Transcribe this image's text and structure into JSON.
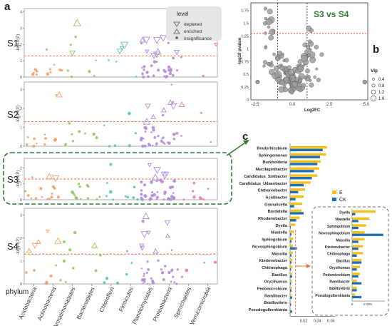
{
  "panels": {
    "a": "a",
    "b": "b",
    "c": "c"
  },
  "colors": {
    "Acidobacteria": "#F4A06A",
    "Actinobacteria": "#F4A06A",
    "Armatimonadetes": "#93C760",
    "Bacteroidetes": "#93C760",
    "Chloroflexi": "#5DC6A6",
    "Firmicutes": "#5DC6A6",
    "Planctomycetes": "#B08AD8",
    "Proteobacteria": "#B08AD8",
    "Spirochaetes": "#F07AA6",
    "Verrucomicrobia": "#F07AA6",
    "threshold": "#F26B38",
    "E": "#F6C01C",
    "CK": "#1F6FB2",
    "highlight": "#2E7D32",
    "volcano_point": "#9E9E9E"
  },
  "chart_data": [
    {
      "type": "scatter",
      "panel": "a",
      "subplots": [
        "S1",
        "S2",
        "S3",
        "S4"
      ],
      "ylabel": "-log10(P)",
      "xlabel": "phylum",
      "categories": [
        "Acidobacteria",
        "Actinobacteria",
        "Armatimonadetes",
        "Bacteroidetes",
        "Chloroflexi",
        "Firmicutes",
        "Planctomycetes",
        "Proteobacteria",
        "Spirochaetes",
        "Verrucomicrobia"
      ],
      "threshold": 1.3,
      "legend": {
        "title": "level",
        "entries": [
          "depleted",
          "enriched",
          "insignificance"
        ],
        "placement": "top-right"
      },
      "yticks": {
        "S1": [
          0,
          1,
          2,
          3,
          4
        ],
        "S2": [
          0,
          1,
          2,
          3
        ],
        "S3": [
          0,
          1,
          2
        ],
        "S4": [
          0,
          1,
          2,
          3
        ]
      },
      "ylim": {
        "S1": [
          0,
          4.2
        ],
        "S2": [
          0,
          3.4
        ],
        "S3": [
          0,
          2.6
        ],
        "S4": [
          0,
          3.3
        ]
      }
    },
    {
      "type": "scatter",
      "panel": "b",
      "title": "S3 vs S4",
      "xlabel": "Log2FC",
      "ylabel": "-log10 pvalue",
      "xticks": [
        -2.5,
        0,
        2.5,
        5
      ],
      "xtick_labels": [
        "-2.5",
        "0.0",
        "2.5",
        "5.0"
      ],
      "yticks": [
        0,
        0.25,
        0.5,
        0.75,
        1,
        1.25,
        1.5,
        1.75
      ],
      "xlim": [
        -2.8,
        5.1
      ],
      "ylim": [
        0,
        1.9
      ],
      "fc_lines": [
        -1,
        1
      ],
      "p_line": 1.3,
      "legend": {
        "title": "Vip",
        "entries": [
          "0.4",
          "0.8",
          "1.2",
          "1.6"
        ],
        "placement": "right"
      }
    },
    {
      "type": "bar",
      "panel": "c",
      "orientation": "horizontal",
      "categories": [
        "Bradyrhizobium",
        "Sphingomonas",
        "Burkholderia",
        "Mucilaginibacter",
        "Candidatus_Solibacter",
        "Candidatus_Udaeobacter",
        "Chthoniobacter",
        "Acidibacter",
        "Granulicella",
        "Bordetella",
        "Rhodanobacter",
        "Dyella",
        "Niastella",
        "Sphingobium",
        "Novosphingobium",
        "Massilia",
        "Ktedonobacter",
        "Chitinophaga",
        "Bacillus",
        "Oryzihumus",
        "Pedomicrobium",
        "Ramlibacter",
        "Bdellovibrio",
        "Pseudogulbenkiania"
      ],
      "series": [
        {
          "name": "E",
          "values": [
            0.054,
            0.053,
            0.045,
            0.043,
            0.04,
            0.03,
            0.022,
            0.02,
            0.018,
            0.017,
            0.014,
            0.0075,
            0.0055,
            0.0045,
            0.004,
            0.004,
            0.0035,
            0.0035,
            0.003,
            0.0025,
            0.0025,
            0.0015,
            0.0015,
            0.001
          ]
        },
        {
          "name": "CK",
          "values": [
            0.048,
            0.044,
            0.04,
            0.035,
            0.032,
            0.02,
            0.012,
            0.008,
            0.006,
            0.02,
            0.009,
            0.001,
            0.002,
            0.002,
            0.01,
            0.002,
            0.002,
            0.0015,
            0.003,
            0.0015,
            0.002,
            0.003,
            0.0015,
            0.003
          ]
        }
      ],
      "xticks": [
        0.02,
        0.04,
        0.06
      ],
      "xtick_labels": [
        "0.02",
        "0.04",
        "0.06"
      ],
      "xlim": [
        0,
        0.066
      ],
      "threshold": 0.008,
      "legend": {
        "entries": [
          "E",
          "CK"
        ],
        "placement": "right"
      },
      "inset": {
        "categories": [
          "Dyella",
          "Niastella",
          "Sphingobium",
          "Novosphingobium",
          "Massilia",
          "Ktedonobacter",
          "Chitinophaga",
          "Bacillus",
          "Oryzihumus",
          "Pedomicrobium",
          "Ramlibacter",
          "Bdellovibrio",
          "Pseudogulbenkiania"
        ],
        "E": [
          0.0075,
          0.0055,
          0.0045,
          0.004,
          0.004,
          0.0035,
          0.0035,
          0.003,
          0.0025,
          0.0025,
          0.0015,
          0.0015,
          0.001
        ],
        "CK": [
          0.001,
          0.002,
          0.002,
          0.01,
          0.002,
          0.002,
          0.0015,
          0.003,
          0.0015,
          0.002,
          0.003,
          0.0015,
          0.003
        ],
        "xticks": [
          0,
          0.005
        ],
        "xtick_labels": [
          "0",
          "0.005"
        ],
        "xlim": [
          0,
          0.0105
        ]
      }
    }
  ]
}
